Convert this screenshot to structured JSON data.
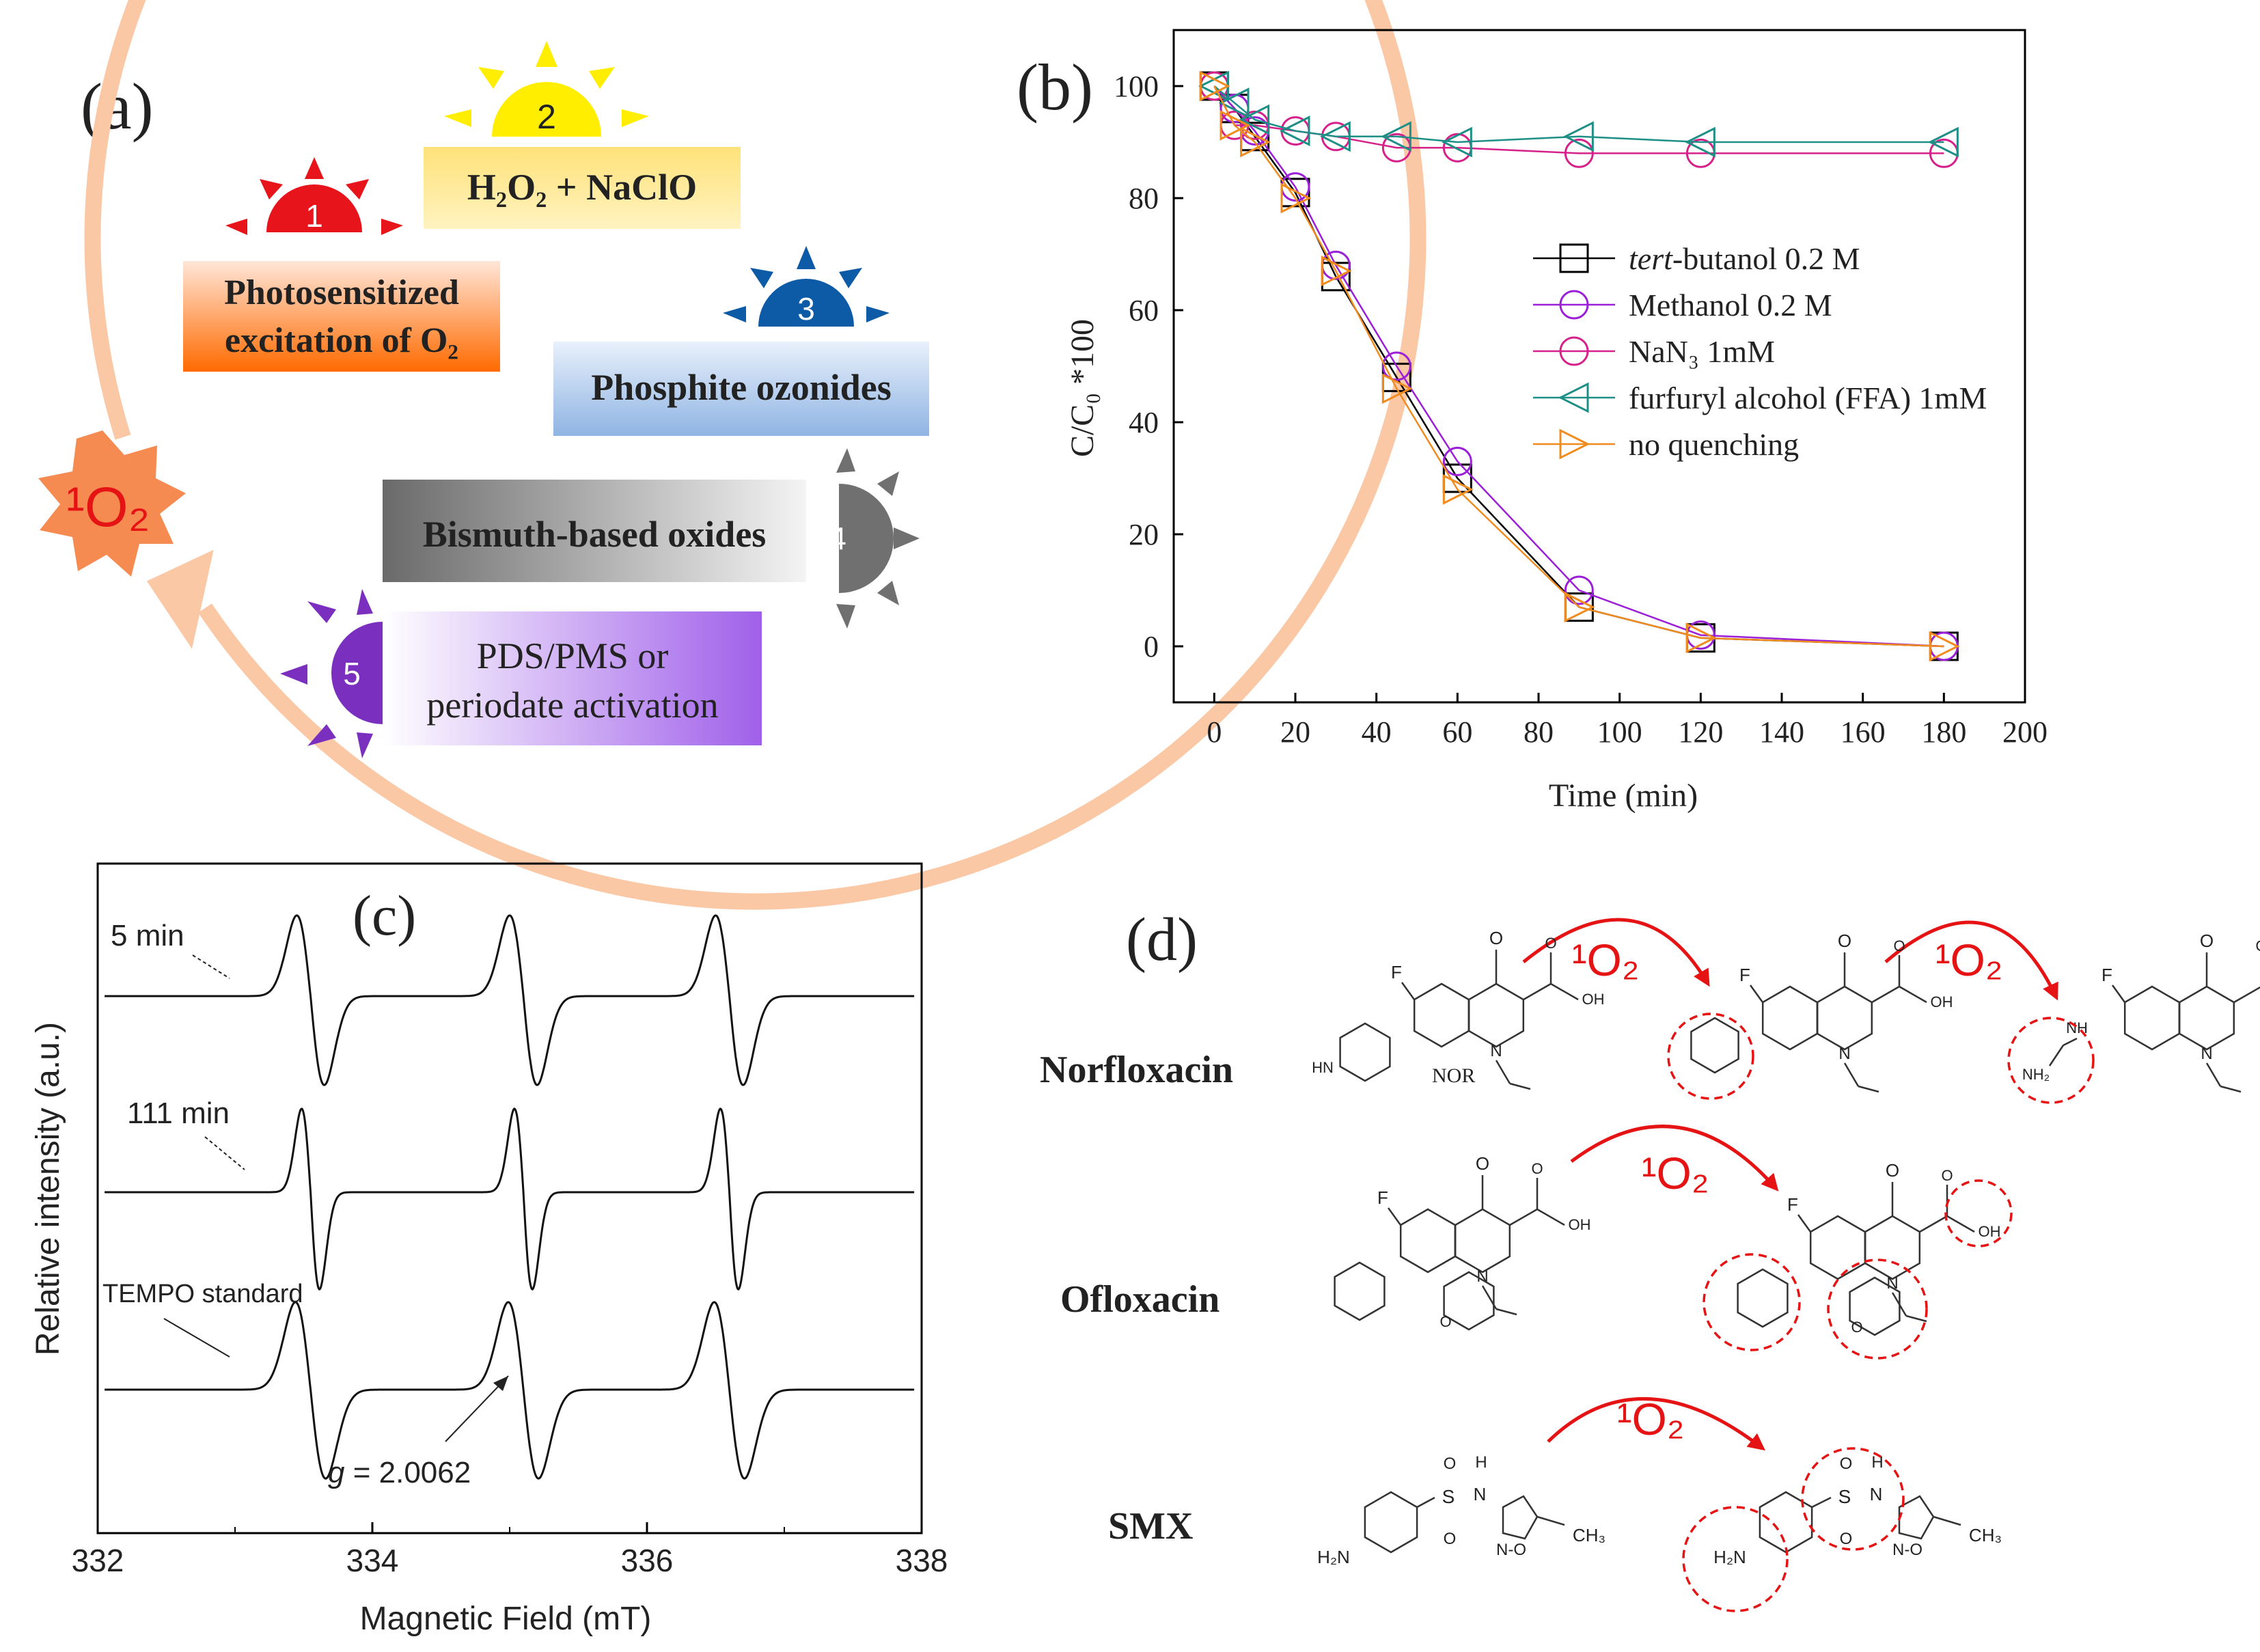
{
  "panel_a": {
    "label": "(a)",
    "center_badge": "¹O₂",
    "methods": [
      {
        "num": "1",
        "line1": "Photosensitized",
        "line2": "excitation of O₂",
        "color": "#e8141c",
        "box_top": "#ffe6d8",
        "box_bottom": "#ff6a00"
      },
      {
        "num": "2",
        "line1": "H₂O₂ + NaClO",
        "line2": "",
        "color": "#ffee00",
        "box_top": "#ffe27a",
        "box_bottom": "#fff3c0"
      },
      {
        "num": "3",
        "line1": "Phosphite ozonides",
        "line2": "",
        "color": "#0d5aa7",
        "box_top": "#e8f0fb",
        "box_bottom": "#8fb4e3"
      },
      {
        "num": "4",
        "line1": "Bismuth-based oxides",
        "line2": "",
        "color": "#707070",
        "box_top": "#6a6a6a",
        "box_bottom": "#f4f4f4"
      },
      {
        "num": "5",
        "line1": "PDS/PMS or",
        "line2": "periodate activation",
        "color": "#7b2fbf",
        "box_top": "#ffffff",
        "box_bottom": "#a060ea"
      }
    ],
    "ring_color": "#fbc8a6",
    "badge_color": "#f68b52",
    "badge_text_color": "#e51313"
  },
  "panel_b": {
    "label": "(b)",
    "chart_data": {
      "type": "line",
      "title": "",
      "xlabel": "Time (min)",
      "ylabel": "C/C₀ *100",
      "xlim": [
        -10,
        200
      ],
      "ylim": [
        -10,
        110
      ],
      "xticks": [
        0,
        20,
        40,
        60,
        80,
        100,
        120,
        140,
        160,
        180,
        200
      ],
      "yticks": [
        0,
        20,
        40,
        60,
        80,
        100
      ],
      "x": [
        0,
        5,
        10,
        20,
        30,
        45,
        60,
        90,
        120,
        180
      ],
      "legend_position": "center-right",
      "series": [
        {
          "name": "tert-butanol 0.2 M",
          "name_italic": "tert",
          "name_rest": "-butanol 0.2 M",
          "marker": "square",
          "color": "#000000",
          "values": [
            100,
            96,
            91,
            81,
            66,
            48,
            30,
            7,
            1.5,
            0
          ]
        },
        {
          "name": "Methanol 0.2 M",
          "marker": "circle",
          "color": "#9b1fd6",
          "values": [
            100,
            96,
            92,
            82,
            68,
            50,
            33,
            10,
            2,
            0
          ]
        },
        {
          "name": "NaN₃ 1mM",
          "marker": "circle",
          "color": "#d6208a",
          "values": [
            100,
            93,
            93,
            92,
            91,
            89,
            89,
            88,
            88,
            88
          ]
        },
        {
          "name": "furfuryl alcohol (FFA) 1mM",
          "marker": "triangle-left",
          "color": "#1d8f86",
          "values": [
            100,
            97,
            94,
            92,
            91,
            91,
            90,
            91,
            90,
            90
          ]
        },
        {
          "name": "no quenching",
          "marker": "triangle-right",
          "color": "#f08c1f",
          "values": [
            100,
            93,
            90,
            80,
            67,
            46,
            28,
            7,
            1.5,
            0
          ]
        }
      ]
    }
  },
  "panel_c": {
    "label": "(c)",
    "chart_data": {
      "type": "line",
      "title": "",
      "xlabel": "Magnetic Field (mT)",
      "ylabel": "Relative intensity (a.u.)",
      "xlim": [
        332,
        338
      ],
      "xticks": [
        332,
        334,
        336,
        338
      ],
      "peak_fields": [
        333.55,
        335.1,
        336.6
      ],
      "series": [
        {
          "name": "5 min"
        },
        {
          "name": "111 min"
        },
        {
          "name": "TEMPO standard"
        }
      ],
      "annotation": {
        "g_symbol": "g",
        "g_value": " = 2.0062"
      }
    }
  },
  "panel_d": {
    "label": "(d)",
    "arrow_label": "¹O₂",
    "arrow_color": "#e51313",
    "rows": [
      {
        "name": "Norfloxacin",
        "abbr": "NOR"
      },
      {
        "name": "Ofloxacin"
      },
      {
        "name": "SMX"
      }
    ],
    "atoms": {
      "F": "F",
      "O": "O",
      "OH": "OH",
      "N": "N",
      "HN": "HN",
      "NH": "NH",
      "S": "S",
      "H": "H",
      "H2N": "H₂N",
      "NH2": "NH₂",
      "CH3": "CH₃",
      "NO": "N-O"
    }
  }
}
